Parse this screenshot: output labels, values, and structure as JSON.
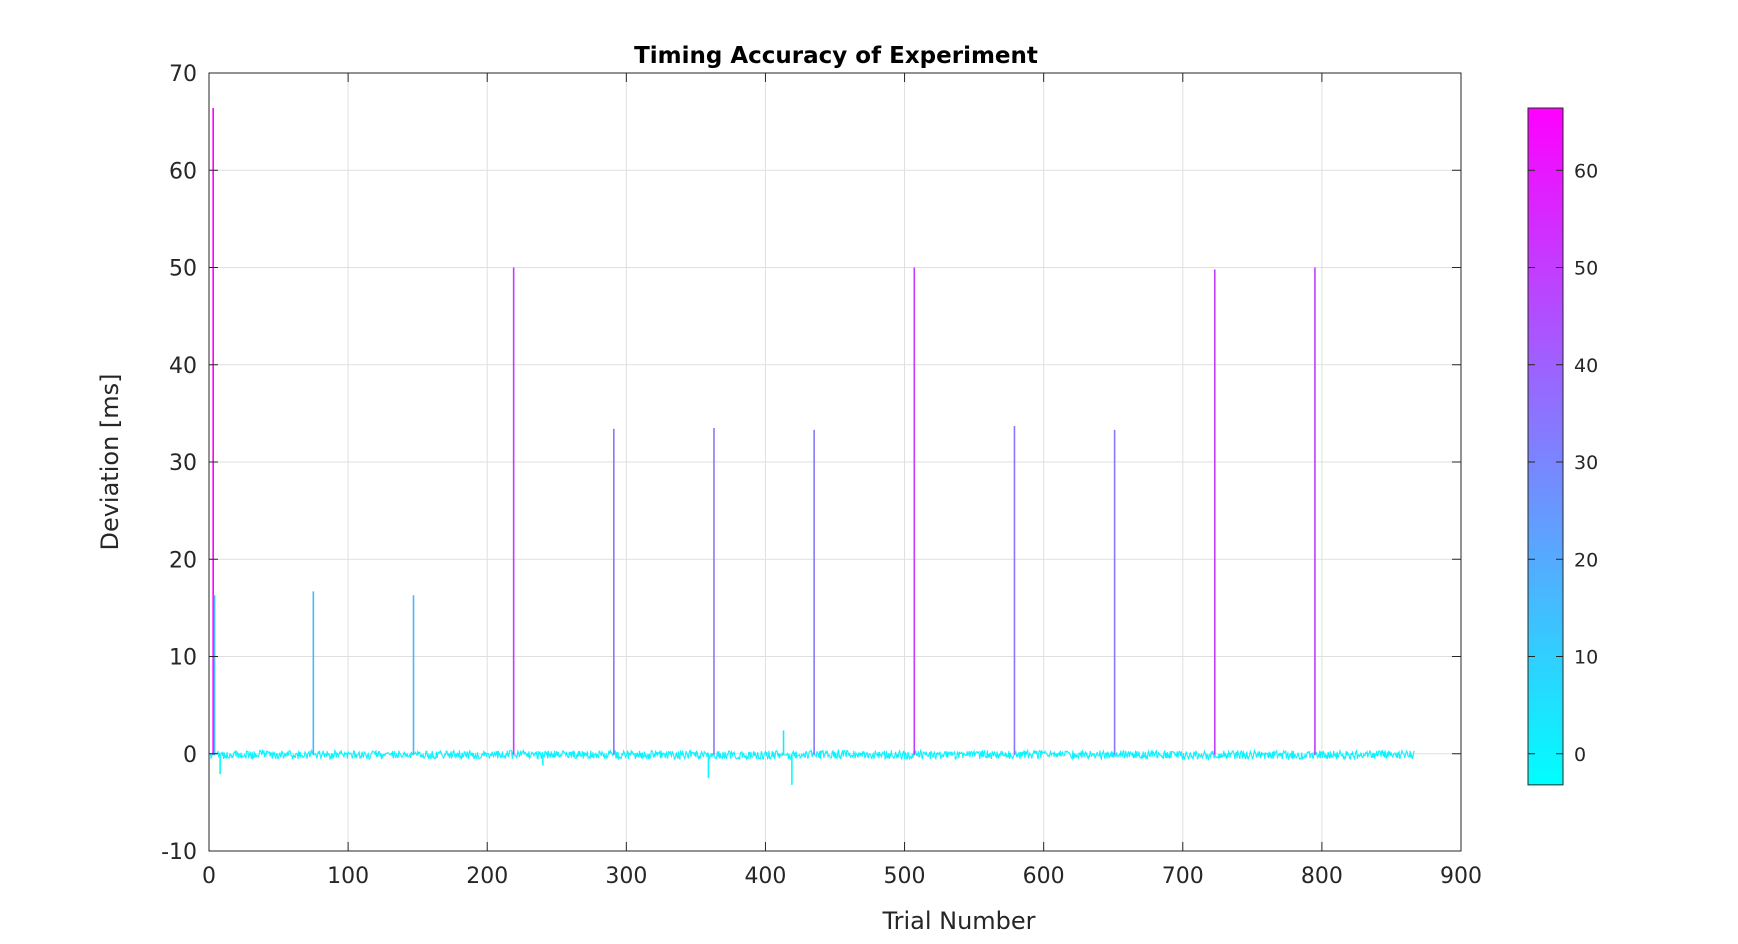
{
  "chart_data": {
    "type": "line",
    "title": "Timing Accuracy of Experiment",
    "xlabel": "Trial Number",
    "ylabel": "Deviation [ms]",
    "xlim": [
      0,
      900
    ],
    "ylim": [
      -10,
      70
    ],
    "xticks": [
      0,
      100,
      200,
      300,
      400,
      500,
      600,
      700,
      800,
      900
    ],
    "yticks": [
      -10,
      0,
      10,
      20,
      30,
      40,
      50,
      60,
      70
    ],
    "grid": true,
    "colormap": "cool",
    "colormap_colors": [
      "#00ffff",
      "#ff00ff"
    ],
    "colorbar": {
      "min": -3.2,
      "max": 66.4,
      "ticks": [
        0,
        10,
        20,
        30,
        40,
        50,
        60
      ],
      "placement": "right"
    },
    "series": [
      {
        "x_range": [
          1,
          866
        ],
        "baseline": -0.1,
        "noise_amplitude": 0.45,
        "spikes": [
          {
            "x": 3,
            "y": 66.4
          },
          {
            "x": 4,
            "y": 16.3
          },
          {
            "x": 8,
            "y": -2.1
          },
          {
            "x": 75,
            "y": 16.7
          },
          {
            "x": 147,
            "y": 16.3
          },
          {
            "x": 219,
            "y": 50.0
          },
          {
            "x": 240,
            "y": -1.2
          },
          {
            "x": 291,
            "y": 33.4
          },
          {
            "x": 359,
            "y": -2.5
          },
          {
            "x": 363,
            "y": 33.5
          },
          {
            "x": 413,
            "y": 2.4
          },
          {
            "x": 419,
            "y": -3.2
          },
          {
            "x": 435,
            "y": 33.3
          },
          {
            "x": 507,
            "y": 50.0
          },
          {
            "x": 579,
            "y": 33.7
          },
          {
            "x": 651,
            "y": 33.3
          },
          {
            "x": 723,
            "y": 49.8
          },
          {
            "x": 795,
            "y": 50.0
          }
        ]
      }
    ]
  }
}
